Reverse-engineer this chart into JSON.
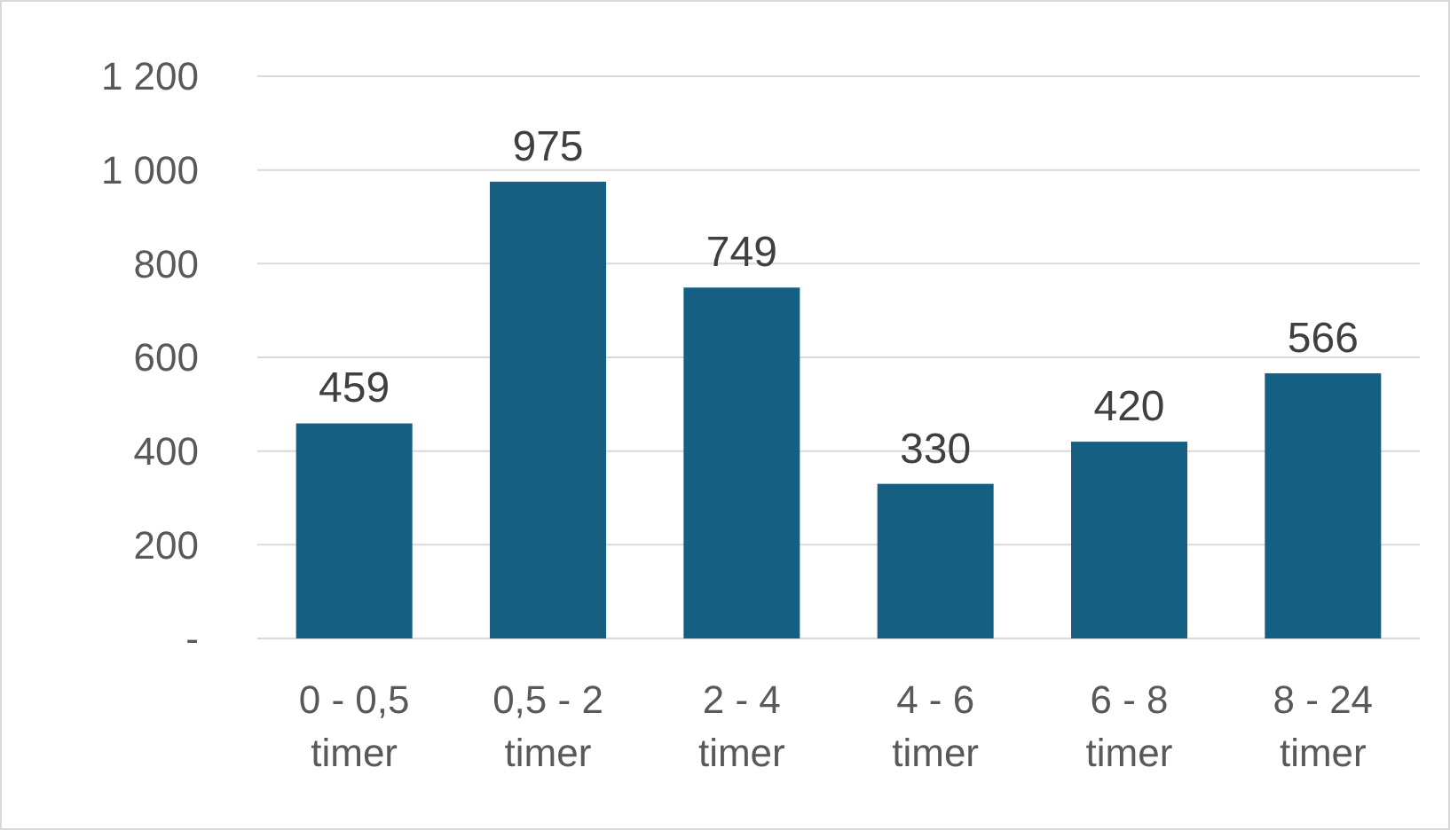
{
  "chart_data": {
    "type": "bar",
    "categories": [
      "0 - 0,5 timer",
      "0,5 - 2 timer",
      "2 - 4 timer",
      "4 - 6 timer",
      "6 - 8 timer",
      "8 - 24 timer"
    ],
    "values": [
      459,
      975,
      749,
      330,
      420,
      566
    ],
    "color": "#156082",
    "ylim": [
      0,
      1200
    ],
    "yticks": [
      {
        "value": 0,
        "label": "-"
      },
      200,
      400,
      600,
      800,
      {
        "value": 1000,
        "label": "1 000"
      },
      {
        "value": 1200,
        "label": "1 200"
      }
    ],
    "grid": "y",
    "data_labels": true
  }
}
